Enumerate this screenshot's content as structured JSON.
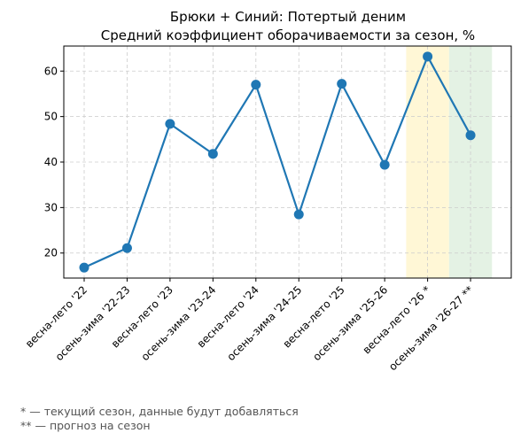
{
  "chart_data": {
    "type": "line",
    "title": "Брюки + Синий: Потертый деним",
    "subtitle": "Средний коэффициент оборачиваемости за сезон, %",
    "xlabel": "",
    "ylabel": "",
    "categories": [
      "весна-лето '22",
      "осень-зима '22-23",
      "весна-лето '23",
      "осень-зима '23-24",
      "весна-лето '24",
      "осень-зима '24-25",
      "весна-лето '25",
      "осень-зима '25-26",
      "весна-лето '26 *",
      "осень-зима '26-27 **"
    ],
    "series": [
      {
        "values": [
          16.8,
          21.1,
          48.4,
          41.8,
          57.0,
          28.5,
          57.2,
          39.4,
          63.2,
          45.9
        ]
      }
    ],
    "ylim": [
      14.5,
      65.5
    ],
    "yticks": [
      20,
      30,
      40,
      50,
      60
    ],
    "grid": true,
    "highlights": [
      {
        "category": "весна-лето '26 *",
        "color": "#fff7d6",
        "meaning": "current"
      },
      {
        "category": "осень-зима '26-27 **",
        "color": "#e4f2e4",
        "meaning": "forecast"
      }
    ],
    "line_color": "#1f77b4"
  },
  "footnotes": {
    "current": "* — текущий сезон, данные будут добавляться",
    "forecast": "** — прогноз на сезон"
  }
}
